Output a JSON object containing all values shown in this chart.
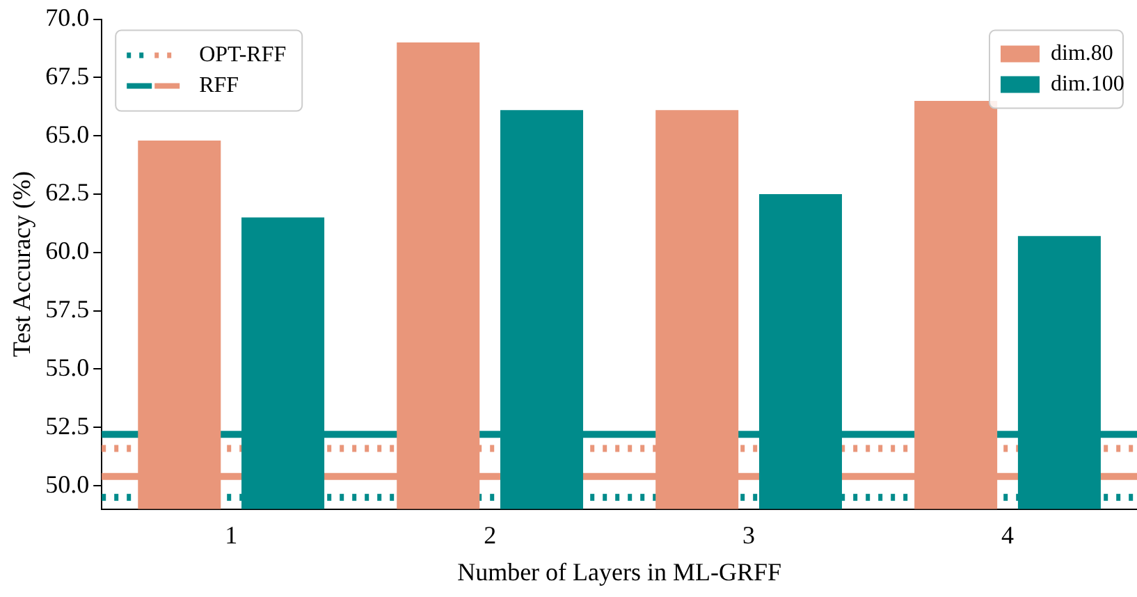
{
  "chart_data": {
    "type": "bar",
    "xlabel": "Number of Layers in ML-GRFF",
    "ylabel": "Test Accuracy (%)",
    "categories": [
      "1",
      "2",
      "3",
      "4"
    ],
    "series": [
      {
        "name": "dim.80",
        "color": "#e9967a",
        "values": [
          64.8,
          69.0,
          66.1,
          66.5
        ]
      },
      {
        "name": "dim.100",
        "color": "#008b8b",
        "values": [
          61.5,
          66.1,
          62.5,
          60.7
        ]
      }
    ],
    "ylim": [
      49.0,
      70.0
    ],
    "yticks": [
      {
        "value": 50,
        "label": "50.0"
      },
      {
        "value": 52.5,
        "label": "52.5"
      },
      {
        "value": 55,
        "label": "55.0"
      },
      {
        "value": 57.5,
        "label": "57.5"
      },
      {
        "value": 60,
        "label": "60.0"
      },
      {
        "value": 62.5,
        "label": "62.5"
      },
      {
        "value": 65,
        "label": "65.0"
      },
      {
        "value": 67.5,
        "label": "67.5"
      },
      {
        "value": 70,
        "label": "70.0"
      }
    ],
    "ref_lines": [
      {
        "axis": "y",
        "value": 49.5,
        "label": null,
        "color": "#008b8b",
        "line_style": "dotted"
      },
      {
        "axis": "y",
        "value": 51.6,
        "label": "OPT-RFF",
        "color": "#e9967a",
        "line_style": "dotted"
      },
      {
        "axis": "y",
        "value": 52.2,
        "label": null,
        "color": "#008b8b",
        "line_style": "solid"
      },
      {
        "axis": "y",
        "value": 50.4,
        "label": "RFF",
        "color": "#e9967a",
        "line_style": "solid"
      }
    ],
    "legend": "top right",
    "grid": false
  }
}
